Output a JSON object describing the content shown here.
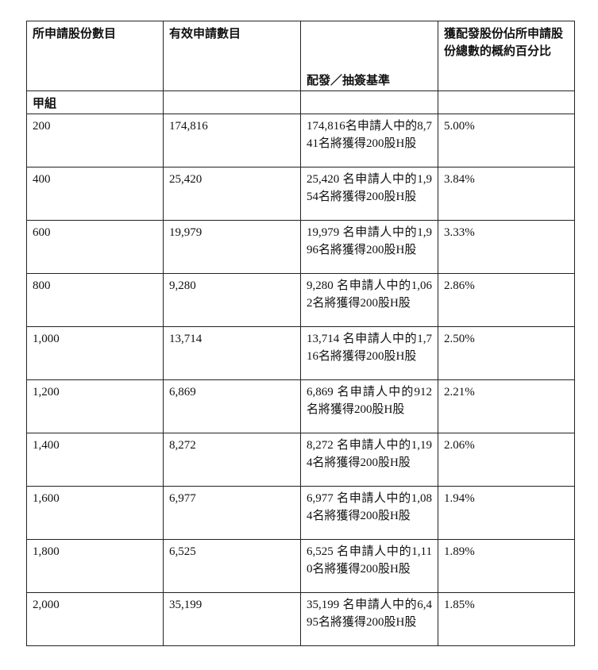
{
  "headers": [
    "所申請股份數目",
    "有效申請數目",
    "配發／抽簽基準",
    "獲配發股份佔所申請股份總數的概約百分比"
  ],
  "group_label": "甲組",
  "rows": [
    {
      "shares": "200",
      "valid": "174,816",
      "basis": "174,816名申請人中的8,741名將獲得200股H股",
      "pct": "5.00%"
    },
    {
      "shares": "400",
      "valid": "25,420",
      "basis": "25,420 名申請人中的1,954名將獲得200股H股",
      "pct": "3.84%"
    },
    {
      "shares": "600",
      "valid": "19,979",
      "basis": "19,979 名申請人中的1,996名將獲得200股H股",
      "pct": "3.33%"
    },
    {
      "shares": "800",
      "valid": "9,280",
      "basis": "9,280 名申請人中的1,062名將獲得200股H股",
      "pct": "2.86%"
    },
    {
      "shares": "1,000",
      "valid": "13,714",
      "basis": "13,714 名申請人中的1,716名將獲得200股H股",
      "pct": "2.50%"
    },
    {
      "shares": "1,200",
      "valid": "6,869",
      "basis": "6,869 名申請人中的912名將獲得200股H股",
      "pct": "2.21%"
    },
    {
      "shares": "1,400",
      "valid": "8,272",
      "basis": "8,272 名申請人中的1,194名將獲得200股H股",
      "pct": "2.06%"
    },
    {
      "shares": "1,600",
      "valid": "6,977",
      "basis": "6,977 名申請人中的1,084名將獲得200股H股",
      "pct": "1.94%"
    },
    {
      "shares": "1,800",
      "valid": "6,525",
      "basis": "6,525 名申請人中的1,110名將獲得200股H股",
      "pct": "1.89%"
    },
    {
      "shares": "2,000",
      "valid": "35,199",
      "basis": "35,199 名申請人中的6,495名將獲得200股H股",
      "pct": "1.85%"
    }
  ]
}
